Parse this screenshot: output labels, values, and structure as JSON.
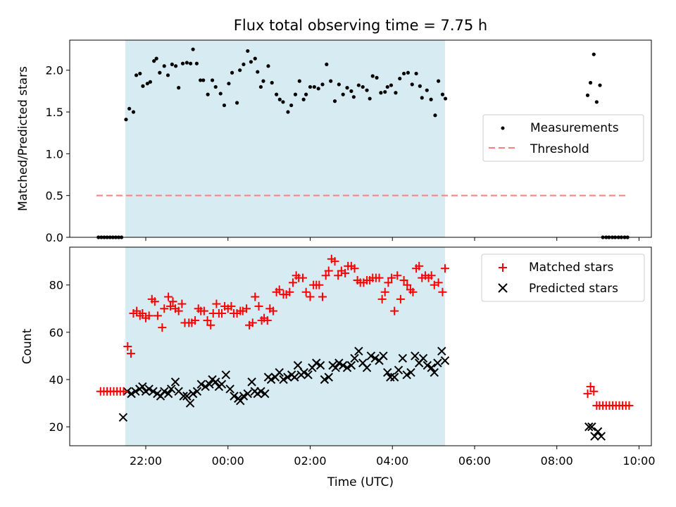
{
  "figure": {
    "title": "Flux total observing time = 7.75 h",
    "xlabel": "Time (UTC)",
    "x_ticks": [
      "22:00",
      "00:00",
      "02:00",
      "04:00",
      "06:00",
      "08:00",
      "10:00"
    ],
    "x_tick_hours": [
      22,
      24,
      26,
      28,
      30,
      32,
      34
    ],
    "xlim_hours": [
      20.15,
      34.3
    ],
    "colors": {
      "shade": "#add8e6",
      "measure": "#000000",
      "threshold": "#ff7f7f",
      "matched": "#ff0000",
      "predicted": "#000000"
    }
  },
  "chart_data": [
    {
      "type": "scatter",
      "ylabel": "Matched/Predicted stars",
      "ylim": [
        0,
        2.36
      ],
      "y_ticks": [
        0.0,
        0.5,
        1.0,
        1.5,
        2.0
      ],
      "y_tick_labels": [
        "0.0",
        "0.5",
        "1.0",
        "1.5",
        "2.0"
      ],
      "shaded_span_hours": [
        21.5,
        29.28
      ],
      "legend": {
        "placement": "center-right",
        "measure_label": "Measurements",
        "threshold_label": "Threshold"
      },
      "threshold": {
        "value": 0.5,
        "x_range_hours": [
          20.8,
          33.75
        ]
      },
      "measurements": {
        "x_hours": [
          20.85,
          20.92,
          20.99,
          21.06,
          21.13,
          21.2,
          21.27,
          21.34,
          21.41,
          21.52,
          21.6,
          21.7,
          21.77,
          21.86,
          21.93,
          22.04,
          22.11,
          22.2,
          22.26,
          22.34,
          22.45,
          22.54,
          22.64,
          22.73,
          22.8,
          22.9,
          23.0,
          23.09,
          23.15,
          23.24,
          23.33,
          23.4,
          23.51,
          23.62,
          23.7,
          23.82,
          23.91,
          24.02,
          24.1,
          24.22,
          24.29,
          24.38,
          24.48,
          24.56,
          24.66,
          24.72,
          24.8,
          24.86,
          24.98,
          25.07,
          25.18,
          25.26,
          25.34,
          25.46,
          25.54,
          25.64,
          25.74,
          25.84,
          25.9,
          26.0,
          26.1,
          26.2,
          26.3,
          26.4,
          26.5,
          26.6,
          26.7,
          26.8,
          26.9,
          27.0,
          27.06,
          27.18,
          27.28,
          27.38,
          27.45,
          27.52,
          27.62,
          27.72,
          27.82,
          27.88,
          27.97,
          28.08,
          28.18,
          28.28,
          28.38,
          28.48,
          28.58,
          28.67,
          28.72,
          28.84,
          28.94,
          29.04,
          29.12,
          29.22,
          29.29,
          32.75,
          32.82,
          32.9,
          32.97,
          33.05,
          33.12,
          33.2,
          33.27,
          33.35,
          33.42,
          33.5,
          33.57,
          33.65,
          33.72
        ],
        "y": [
          0,
          0,
          0,
          0,
          0,
          0,
          0,
          0,
          0,
          1.41,
          1.54,
          1.5,
          1.94,
          1.96,
          1.81,
          1.84,
          1.86,
          2.11,
          2.14,
          1.97,
          2.05,
          1.94,
          2.07,
          2.05,
          1.79,
          2.08,
          2.09,
          2.08,
          2.25,
          2.08,
          1.88,
          1.88,
          1.71,
          1.88,
          1.8,
          1.72,
          1.58,
          1.84,
          1.97,
          1.61,
          2.0,
          2.07,
          2.23,
          2.1,
          2.14,
          1.98,
          1.8,
          1.87,
          2.05,
          1.85,
          1.71,
          1.65,
          1.62,
          1.5,
          1.58,
          1.71,
          1.87,
          1.65,
          1.71,
          1.8,
          1.8,
          1.78,
          1.83,
          2.07,
          1.87,
          1.63,
          1.83,
          1.71,
          1.79,
          1.75,
          1.68,
          1.82,
          1.8,
          1.76,
          1.66,
          1.93,
          1.91,
          1.73,
          1.74,
          1.8,
          1.82,
          1.73,
          1.9,
          1.96,
          1.97,
          1.83,
          1.96,
          1.81,
          1.67,
          1.76,
          1.65,
          1.46,
          1.87,
          1.71,
          1.66,
          1.7,
          1.85,
          2.19,
          1.62,
          1.82,
          0,
          0,
          0,
          0,
          0,
          0,
          0,
          0,
          0
        ]
      }
    },
    {
      "type": "scatter",
      "ylabel": "Count",
      "ylim": [
        12,
        96
      ],
      "y_ticks": [
        20,
        40,
        60,
        80
      ],
      "y_tick_labels": [
        "20",
        "40",
        "60",
        "80"
      ],
      "shaded_span_hours": [
        21.5,
        29.28
      ],
      "legend": {
        "placement": "top-right"
      },
      "series": [
        {
          "name": "Matched stars",
          "marker": "plus",
          "x_hours": [
            20.9,
            20.98,
            21.06,
            21.14,
            21.22,
            21.3,
            21.38,
            21.46,
            21.56,
            21.64,
            21.7,
            21.78,
            21.86,
            21.92,
            22.0,
            22.08,
            22.15,
            22.22,
            22.29,
            22.4,
            22.45,
            22.55,
            22.6,
            22.66,
            22.72,
            22.8,
            22.88,
            22.95,
            23.05,
            23.12,
            23.2,
            23.28,
            23.34,
            23.42,
            23.5,
            23.58,
            23.64,
            23.72,
            23.78,
            23.85,
            23.92,
            24.0,
            24.08,
            24.14,
            24.22,
            24.3,
            24.36,
            24.45,
            24.52,
            24.6,
            24.66,
            24.75,
            24.82,
            24.88,
            24.96,
            25.02,
            25.1,
            25.18,
            25.25,
            25.35,
            25.42,
            25.5,
            25.58,
            25.66,
            25.72,
            25.82,
            25.9,
            26.0,
            26.08,
            26.15,
            26.22,
            26.3,
            26.38,
            26.45,
            26.52,
            26.6,
            26.68,
            26.76,
            26.85,
            26.92,
            27.0,
            27.08,
            27.15,
            27.22,
            27.3,
            27.38,
            27.45,
            27.52,
            27.6,
            27.68,
            27.75,
            27.82,
            27.9,
            27.98,
            28.05,
            28.12,
            28.2,
            28.28,
            28.36,
            28.44,
            28.5,
            28.58,
            28.65,
            28.72,
            28.8,
            28.88,
            28.95,
            29.02,
            29.12,
            29.22,
            29.28,
            32.75,
            32.82,
            32.9,
            32.97,
            33.04,
            33.12,
            33.2,
            33.28,
            33.36,
            33.44,
            33.52,
            33.6,
            33.68,
            33.76
          ],
          "y": [
            35,
            35,
            35,
            35,
            35,
            35,
            35,
            35,
            54,
            51,
            68,
            69,
            67,
            68,
            66,
            67,
            74,
            73,
            67,
            62,
            70,
            75,
            71,
            73,
            70,
            69,
            72,
            64,
            64,
            64,
            65,
            70,
            69,
            69,
            65,
            63,
            68,
            72,
            68,
            68,
            71,
            70,
            71,
            68,
            68,
            69,
            69,
            70,
            63,
            64,
            75,
            71,
            65,
            66,
            65,
            70,
            69,
            77,
            78,
            76,
            76,
            77,
            81,
            84,
            83,
            83,
            77,
            75,
            80,
            80,
            80,
            75,
            84,
            86,
            91,
            90,
            84,
            86,
            85,
            88,
            88,
            87,
            82,
            81,
            81,
            82,
            82,
            83,
            83,
            83,
            74,
            77,
            81,
            83,
            69,
            84,
            74,
            82,
            80,
            78,
            77,
            87,
            88,
            83,
            84,
            83,
            84,
            80,
            81,
            77,
            87,
            34,
            37,
            35,
            29,
            29,
            29,
            29,
            29,
            29,
            29,
            29,
            29,
            29,
            29
          ],
          "color": "#ff0000"
        },
        {
          "name": "Predicted stars",
          "marker": "cross",
          "x_hours": [
            21.45,
            21.55,
            21.65,
            21.75,
            21.85,
            21.92,
            22.0,
            22.08,
            22.18,
            22.28,
            22.36,
            22.45,
            22.55,
            22.62,
            22.72,
            22.8,
            22.92,
            23.0,
            23.08,
            23.15,
            23.25,
            23.35,
            23.45,
            23.55,
            23.62,
            23.7,
            23.78,
            23.85,
            23.95,
            24.05,
            24.15,
            24.25,
            24.3,
            24.38,
            24.48,
            24.58,
            24.65,
            24.72,
            24.8,
            24.9,
            24.98,
            25.05,
            25.15,
            25.25,
            25.35,
            25.45,
            25.55,
            25.62,
            25.7,
            25.78,
            25.85,
            25.95,
            26.05,
            26.15,
            26.25,
            26.35,
            26.45,
            26.55,
            26.62,
            26.7,
            26.8,
            26.9,
            27.0,
            27.08,
            27.18,
            27.28,
            27.38,
            27.48,
            27.58,
            27.68,
            27.78,
            27.88,
            27.95,
            28.05,
            28.15,
            28.25,
            28.35,
            28.45,
            28.55,
            28.65,
            28.75,
            28.85,
            28.95,
            29.02,
            29.1,
            29.2,
            29.28,
            32.78,
            32.85,
            32.92,
            33.0,
            33.08
          ],
          "y": [
            24,
            35,
            34,
            35,
            36,
            37,
            35,
            36,
            35,
            34,
            33,
            35,
            34,
            36,
            39,
            35,
            33,
            33,
            30,
            34,
            35,
            38,
            37,
            38,
            40,
            39,
            37,
            38,
            42,
            36,
            33,
            32,
            31,
            33,
            34,
            39,
            35,
            34,
            35,
            34,
            41,
            40,
            41,
            43,
            40,
            41,
            42,
            41,
            46,
            42,
            43,
            42,
            45,
            47,
            46,
            40,
            41,
            46,
            45,
            47,
            46,
            45,
            46,
            49,
            52,
            47,
            45,
            50,
            49,
            48,
            50,
            43,
            41,
            41,
            44,
            49,
            42,
            43,
            50,
            47,
            49,
            46,
            45,
            43,
            47,
            52,
            48,
            20,
            20,
            16,
            18,
            16
          ],
          "color": "#000000"
        }
      ]
    }
  ]
}
